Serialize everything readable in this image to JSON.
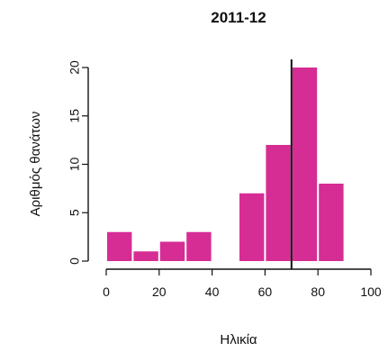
{
  "chart_data": {
    "type": "bar",
    "title": "2011-12",
    "xlabel": "Ηλικία",
    "ylabel": "Αριθμός θανάτων",
    "bin_width": 10,
    "bins": [
      {
        "x0": 0,
        "x1": 10,
        "value": 3
      },
      {
        "x0": 10,
        "x1": 20,
        "value": 1
      },
      {
        "x0": 20,
        "x1": 30,
        "value": 2
      },
      {
        "x0": 30,
        "x1": 40,
        "value": 3
      },
      {
        "x0": 40,
        "x1": 50,
        "value": 0
      },
      {
        "x0": 50,
        "x1": 60,
        "value": 7
      },
      {
        "x0": 60,
        "x1": 70,
        "value": 12
      },
      {
        "x0": 70,
        "x1": 80,
        "value": 20
      },
      {
        "x0": 80,
        "x1": 90,
        "value": 8
      }
    ],
    "xlim": [
      0,
      100
    ],
    "ylim": [
      0,
      20
    ],
    "x_ticks": [
      0,
      20,
      40,
      60,
      80,
      100
    ],
    "y_ticks": [
      0,
      5,
      10,
      15,
      20
    ],
    "x_tick_labels": [
      "0",
      "20",
      "40",
      "60",
      "80",
      "100"
    ],
    "y_tick_labels": [
      "0",
      "5",
      "10",
      "15",
      "20"
    ],
    "reference_line": 70,
    "bar_color": "#d62d95",
    "line_color": "#111111",
    "grid": false,
    "legend": "none"
  }
}
